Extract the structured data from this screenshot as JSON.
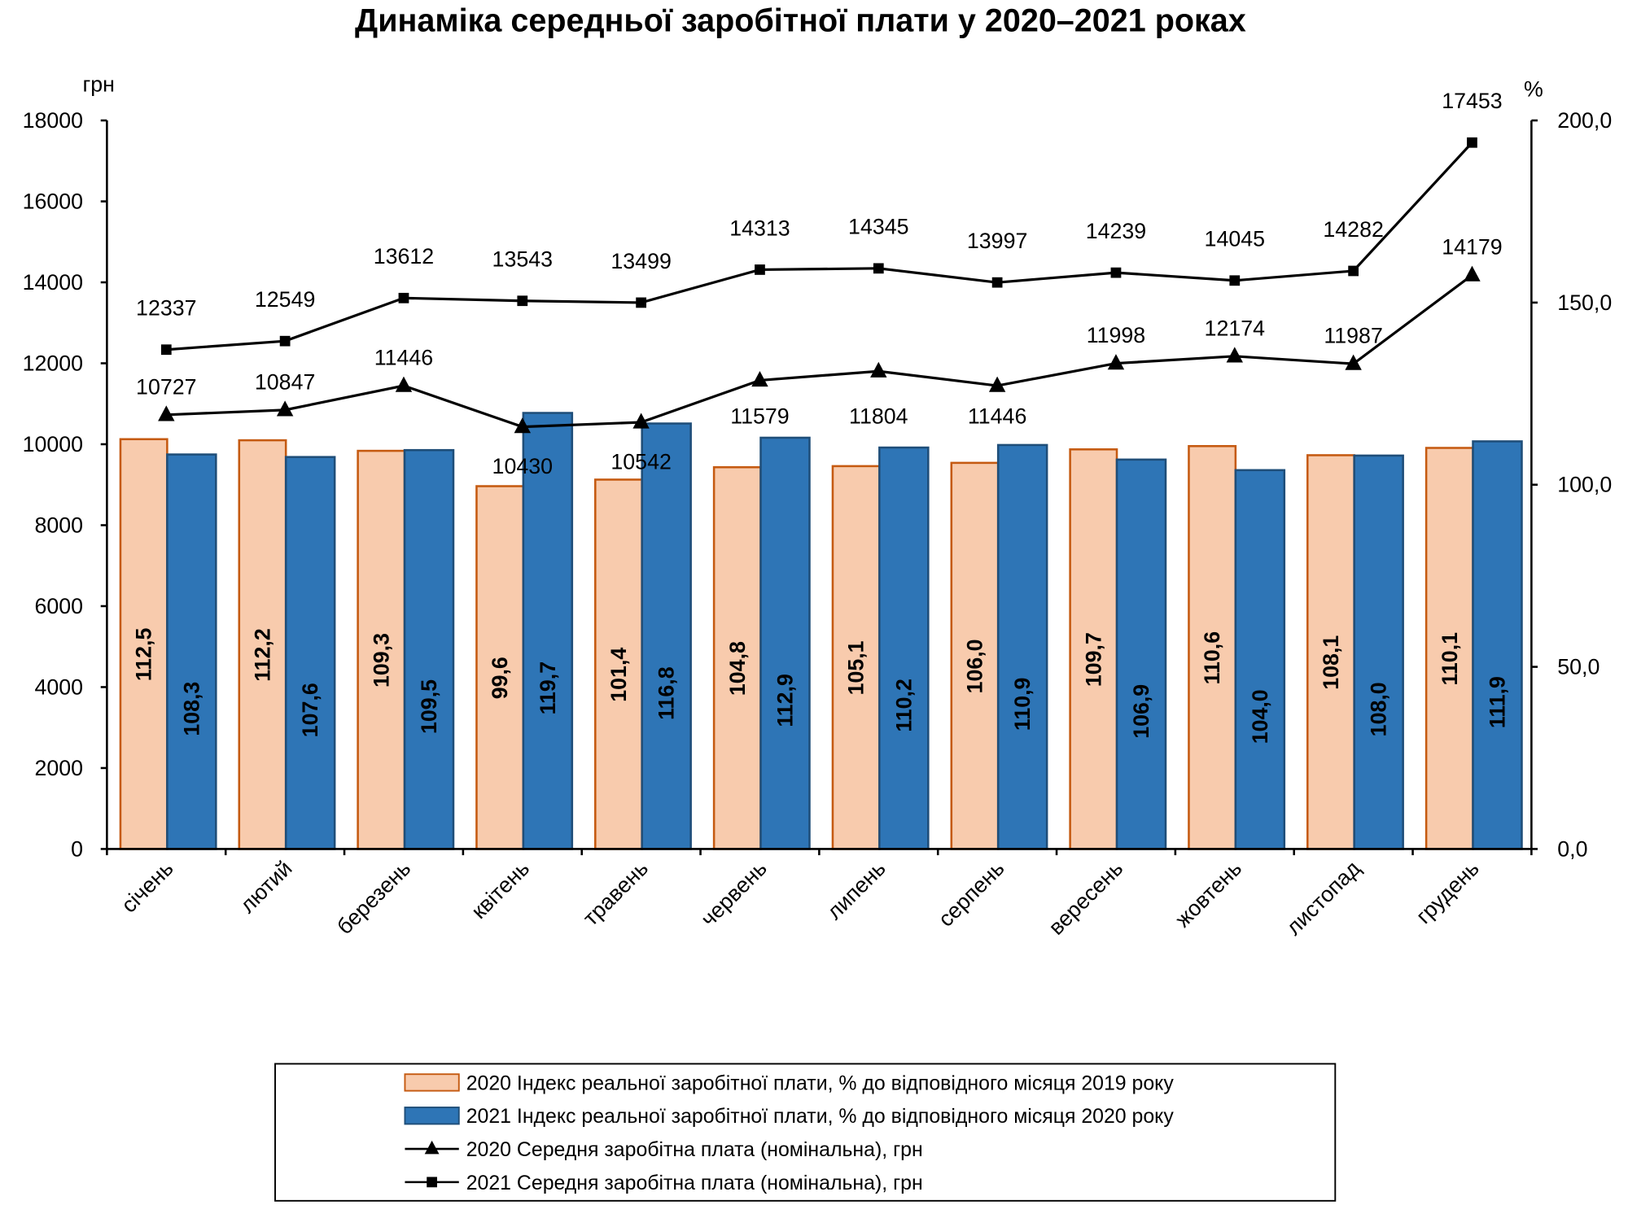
{
  "chart_data": {
    "type": "bar+line",
    "title": "Динаміка середньої заробітної плати у 2020–2021 роках",
    "ylabel_left": "грн",
    "ylabel_right": "%",
    "ylim_left": [
      0,
      18000
    ],
    "ylim_right": [
      0,
      200
    ],
    "yticks_left": [
      "0",
      "2000",
      "4000",
      "6000",
      "8000",
      "10000",
      "12000",
      "14000",
      "16000",
      "18000"
    ],
    "yticks_right": [
      "0,0",
      "50,0",
      "100,0",
      "150,0",
      "200,0"
    ],
    "grid": false,
    "legend_position": "bottom",
    "categories": [
      "січень",
      "лютий",
      "березень",
      "квітень",
      "травень",
      "червень",
      "липень",
      "серпень",
      "вересень",
      "жовтень",
      "листопад",
      "грудень"
    ],
    "series": [
      {
        "name": "2020 Індекс реальної заробітної плати, % до відповідного місяця 2019 року",
        "type": "bar",
        "axis": "right",
        "color": "#f8cbad",
        "edge": "#c55a11",
        "values": [
          112.5,
          112.2,
          109.3,
          99.6,
          101.4,
          104.8,
          105.1,
          106.0,
          109.7,
          110.6,
          108.1,
          110.1
        ],
        "labels": [
          "112,5",
          "112,2",
          "109,3",
          "99,6",
          "101,4",
          "104,8",
          "105,1",
          "106,0",
          "109,7",
          "110,6",
          "108,1",
          "110,1"
        ]
      },
      {
        "name": "2021 Індекс реальної заробітної плати, % до відповідного місяця 2020 року",
        "type": "bar",
        "axis": "right",
        "color": "#2e75b6",
        "edge": "#1f4e79",
        "values": [
          108.3,
          107.6,
          109.5,
          119.7,
          116.8,
          112.9,
          110.2,
          110.9,
          106.9,
          104.0,
          108.0,
          111.9
        ],
        "labels": [
          "108,3",
          "107,6",
          "109,5",
          "119,7",
          "116,8",
          "112,9",
          "110,2",
          "110,9",
          "106,9",
          "104,0",
          "108,0",
          "111,9"
        ]
      },
      {
        "name": "2020 Середня заробітна плата (номінальна), грн",
        "type": "line",
        "axis": "left",
        "marker": "triangle",
        "color": "#000000",
        "values": [
          10727,
          10847,
          11446,
          10430,
          10542,
          11579,
          11804,
          11446,
          11998,
          12174,
          11987,
          14179
        ],
        "labels": [
          "10727",
          "10847",
          "11446",
          "10430",
          "10542",
          "11579",
          "11804",
          "11446",
          "11998",
          "12174",
          "11987",
          "14179"
        ]
      },
      {
        "name": "2021 Середня заробітна плата (номінальна), грн",
        "type": "line",
        "axis": "left",
        "marker": "square",
        "color": "#000000",
        "values": [
          12337,
          12549,
          13612,
          13543,
          13499,
          14313,
          14345,
          13997,
          14239,
          14045,
          14282,
          17453
        ],
        "labels": [
          "12337",
          "12549",
          "13612",
          "13543",
          "13499",
          "14313",
          "14345",
          "13997",
          "14239",
          "14045",
          "14282",
          "17453"
        ]
      }
    ]
  }
}
